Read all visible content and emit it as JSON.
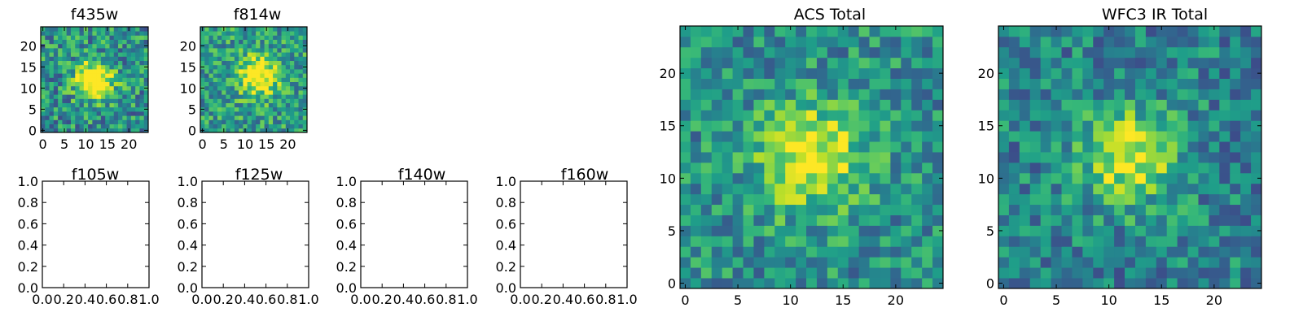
{
  "chart_data": [
    {
      "id": "f435w",
      "type": "heatmap",
      "title": "f435w",
      "grid_size": 25,
      "xlim": [
        -0.5,
        24.5
      ],
      "ylim": [
        -0.5,
        24.5
      ],
      "xticks": [
        0,
        5,
        10,
        15,
        20
      ],
      "yticks": [
        0,
        5,
        10,
        15,
        20
      ],
      "colormap": "viridis",
      "peak": {
        "x": 12,
        "y": 12,
        "sigma": 3.0,
        "amplitude": 0.75,
        "background": 0.5,
        "noise": 0.55,
        "seed": 11
      }
    },
    {
      "id": "f814w",
      "type": "heatmap",
      "title": "f814w",
      "grid_size": 25,
      "xlim": [
        -0.5,
        24.5
      ],
      "ylim": [
        -0.5,
        24.5
      ],
      "xticks": [
        0,
        5,
        10,
        15,
        20
      ],
      "yticks": [
        0,
        5,
        10,
        15,
        20
      ],
      "colormap": "viridis",
      "peak": {
        "x": 13,
        "y": 13,
        "sigma": 3.2,
        "amplitude": 0.6,
        "background": 0.55,
        "noise": 0.5,
        "seed": 23
      }
    },
    {
      "id": "f105w",
      "type": "empty",
      "title": "f105w",
      "xlim": [
        0,
        1
      ],
      "ylim": [
        0,
        1
      ],
      "xticks": [
        "0.0",
        "0.2",
        "0.4",
        "0.6",
        "0.8",
        "1.0"
      ],
      "yticks": [
        "0.0",
        "0.2",
        "0.4",
        "0.6",
        "0.8",
        "1.0"
      ]
    },
    {
      "id": "f125w",
      "type": "empty",
      "title": "f125w",
      "xlim": [
        0,
        1
      ],
      "ylim": [
        0,
        1
      ],
      "xticks": [
        "0.0",
        "0.2",
        "0.4",
        "0.6",
        "0.8",
        "1.0"
      ],
      "yticks": [
        "0.0",
        "0.2",
        "0.4",
        "0.6",
        "0.8",
        "1.0"
      ]
    },
    {
      "id": "f140w",
      "type": "empty",
      "title": "f140w",
      "xlim": [
        0,
        1
      ],
      "ylim": [
        0,
        1
      ],
      "xticks": [
        "0.0",
        "0.2",
        "0.4",
        "0.6",
        "0.8",
        "1.0"
      ],
      "yticks": [
        "0.0",
        "0.2",
        "0.4",
        "0.6",
        "0.8",
        "1.0"
      ]
    },
    {
      "id": "f160w",
      "type": "empty",
      "title": "f160w",
      "xlim": [
        0,
        1
      ],
      "ylim": [
        0,
        1
      ],
      "xticks": [
        "0.0",
        "0.2",
        "0.4",
        "0.6",
        "0.8",
        "1.0"
      ],
      "yticks": [
        "0.0",
        "0.2",
        "0.4",
        "0.6",
        "0.8",
        "1.0"
      ]
    },
    {
      "id": "acs-total",
      "type": "heatmap",
      "title": "ACS Total",
      "grid_size": 25,
      "xlim": [
        -0.5,
        24.5
      ],
      "ylim": [
        -0.5,
        24.5
      ],
      "xticks": [
        0,
        5,
        10,
        15,
        20
      ],
      "yticks": [
        0,
        5,
        10,
        15,
        20
      ],
      "colormap": "viridis",
      "peak": {
        "x": 12,
        "y": 12,
        "sigma": 3.5,
        "amplitude": 0.5,
        "background": 0.5,
        "noise": 0.45,
        "seed": 37
      }
    },
    {
      "id": "wfc3-ir-total",
      "type": "heatmap",
      "title": "WFC3 IR Total",
      "grid_size": 25,
      "xlim": [
        -0.5,
        24.5
      ],
      "ylim": [
        -0.5,
        24.5
      ],
      "xticks": [
        0,
        5,
        10,
        15,
        20
      ],
      "yticks": [
        0,
        5,
        10,
        15,
        20
      ],
      "colormap": "viridis",
      "peak": {
        "x": 12,
        "y": 12,
        "sigma": 3.2,
        "amplitude": 0.5,
        "background": 0.45,
        "noise": 0.45,
        "seed": 53
      }
    }
  ]
}
